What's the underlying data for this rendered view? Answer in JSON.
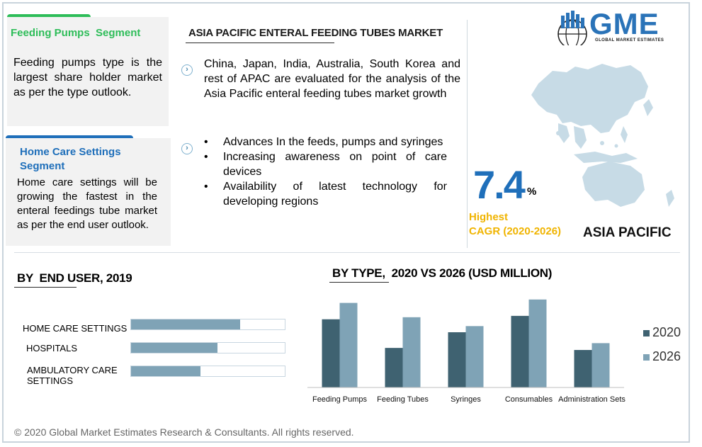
{
  "feeding_card": {
    "title": "Feeding Pumps  Segment",
    "body": "Feeding pumps type is the largest share holder market as per the type outlook."
  },
  "homecare_card": {
    "title_line1": "Home Care Settings",
    "title_line2": "Segment",
    "body": "Home care settings  will be growing the fastest in the enteral feedings tube market as per the end user outlook."
  },
  "market": {
    "title": "ASIA PACIFIC ENTERAL FEEDING TUBES MARKET",
    "paragraph": "China, Japan, India, Australia, South Korea and rest of APAC are evaluated for the analysis of the Asia Pacific enteral feeding tubes market growth",
    "bullets": [
      "Advances In the feeds, pumps and syringes",
      "Increasing awareness on point of care devices",
      "Availability of latest technology for developing regions"
    ]
  },
  "logo": {
    "text": "GME",
    "subtitle": "GLOBAL MARKET ESTIMATES"
  },
  "stat": {
    "value": "7.4",
    "unit": "%",
    "label_line1": "Highest",
    "label_line2": "CAGR (2020-2026)",
    "region": "ASIA PACIFIC"
  },
  "colors": {
    "green": "#2ebd59",
    "blue": "#1f6fba",
    "gold": "#f0b400",
    "series_2020": "#3f6271",
    "series_2026": "#7fa3b6"
  },
  "end_user": {
    "title": "BY  END USER, 2019",
    "chart_data": {
      "type": "bar",
      "orientation": "horizontal",
      "categories": [
        "HOME CARE SETTINGS",
        "HOSPITALS",
        "AMBULATORY CARE SETTINGS"
      ],
      "values": [
        71,
        56,
        45
      ],
      "xlim": [
        0,
        100
      ]
    }
  },
  "by_type": {
    "title": "BY TYPE,  2020 VS 2026 (USD MILLION)",
    "chart_data": {
      "type": "bar",
      "categories": [
        "Feeding Pumps",
        "Feeding Tubes",
        "Syringes",
        "Consumables",
        "Administration Sets"
      ],
      "series": [
        {
          "name": "2020",
          "values": [
            100,
            58,
            81,
            105,
            55
          ]
        },
        {
          "name": "2026",
          "values": [
            124,
            103,
            90,
            129,
            65
          ]
        }
      ],
      "ylim": [
        0,
        135
      ]
    }
  },
  "footer": "© 2020 Global Market Estimates Research & Consultants. All rights reserved."
}
